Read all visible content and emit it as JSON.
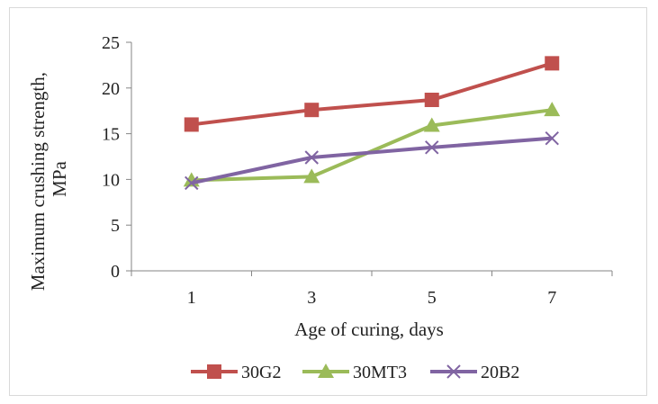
{
  "chart_data": {
    "type": "line",
    "categories": [
      "1",
      "3",
      "5",
      "7"
    ],
    "xlabel": "Age of curing, days",
    "ylabel_lines": [
      "Maximum crushing strength,",
      "MPa"
    ],
    "ylim": [
      0,
      25
    ],
    "yticks": [
      "0",
      "5",
      "10",
      "15",
      "20",
      "25"
    ],
    "grid": false,
    "legend_position": "bottom",
    "series": [
      {
        "name": "30G2",
        "values": [
          16.0,
          17.6,
          18.7,
          22.7
        ],
        "color": "#c0504d",
        "marker": "square"
      },
      {
        "name": "30MT3",
        "values": [
          9.9,
          10.3,
          15.9,
          17.6
        ],
        "color": "#9bbb59",
        "marker": "triangle"
      },
      {
        "name": "20B2",
        "values": [
          9.6,
          12.4,
          13.5,
          14.5
        ],
        "color": "#8064a2",
        "marker": "x"
      }
    ]
  }
}
